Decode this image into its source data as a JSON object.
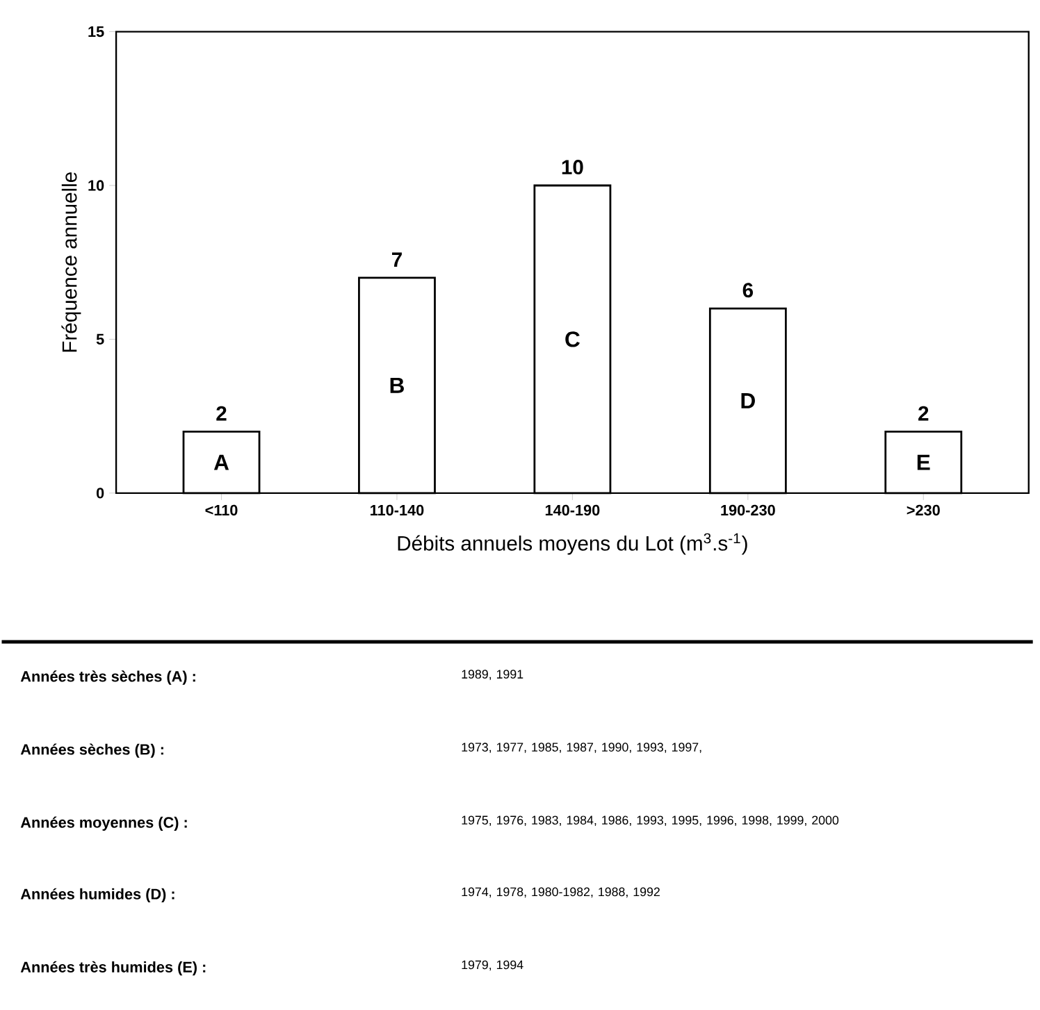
{
  "chart_data": {
    "type": "bar",
    "categories": [
      "<110",
      "110-140",
      "140-190",
      "190-230",
      ">230"
    ],
    "values": [
      2,
      7,
      10,
      6,
      2
    ],
    "color": "#ffffff",
    "ylim": [
      0,
      15
    ],
    "yticks": [
      0,
      5,
      10,
      15
    ],
    "xlabel": "Débits annuels moyens du Lot (m$^{3}$.s$^{-1}$)",
    "ylabel": "Fréquence annuelle",
    "data_labels": true,
    "annotations": [
      "A",
      "B",
      "C",
      "D",
      "E",
      "Années très sèches (A) :",
      "1989, 1991",
      "Années sèches (B) :",
      "1973, 1977, 1985, 1987, 1990, 1993, 1997,",
      "Années moyennes (C) :",
      "1975, 1976, 1983, 1984, 1986, 1993, 1995, 1996, 1998, 1999, 2000",
      "Années humides (D) :",
      "1974, 1978, 1980-1982, 1988, 1992",
      "Années très humides (E) :",
      "1979, 1994"
    ]
  }
}
